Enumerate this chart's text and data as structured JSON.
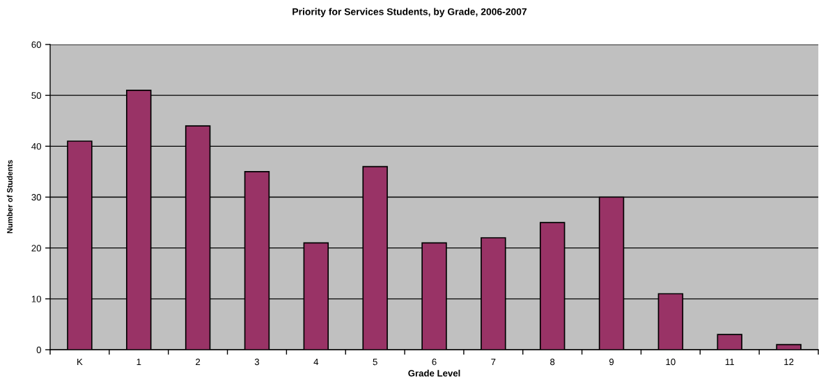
{
  "chart_data": {
    "type": "bar",
    "title": "Priority for Services Students, by Grade, 2006-2007",
    "xlabel": "Grade Level",
    "ylabel": "Number of Students",
    "categories": [
      "K",
      "1",
      "2",
      "3",
      "4",
      "5",
      "6",
      "7",
      "8",
      "9",
      "10",
      "11",
      "12"
    ],
    "values": [
      41,
      51,
      44,
      35,
      21,
      36,
      21,
      22,
      25,
      30,
      11,
      3,
      1
    ],
    "color": "#993366",
    "ylim": [
      0,
      60
    ],
    "yticks": [
      0,
      10,
      20,
      30,
      40,
      50,
      60
    ],
    "grid": "y",
    "legend": false
  }
}
